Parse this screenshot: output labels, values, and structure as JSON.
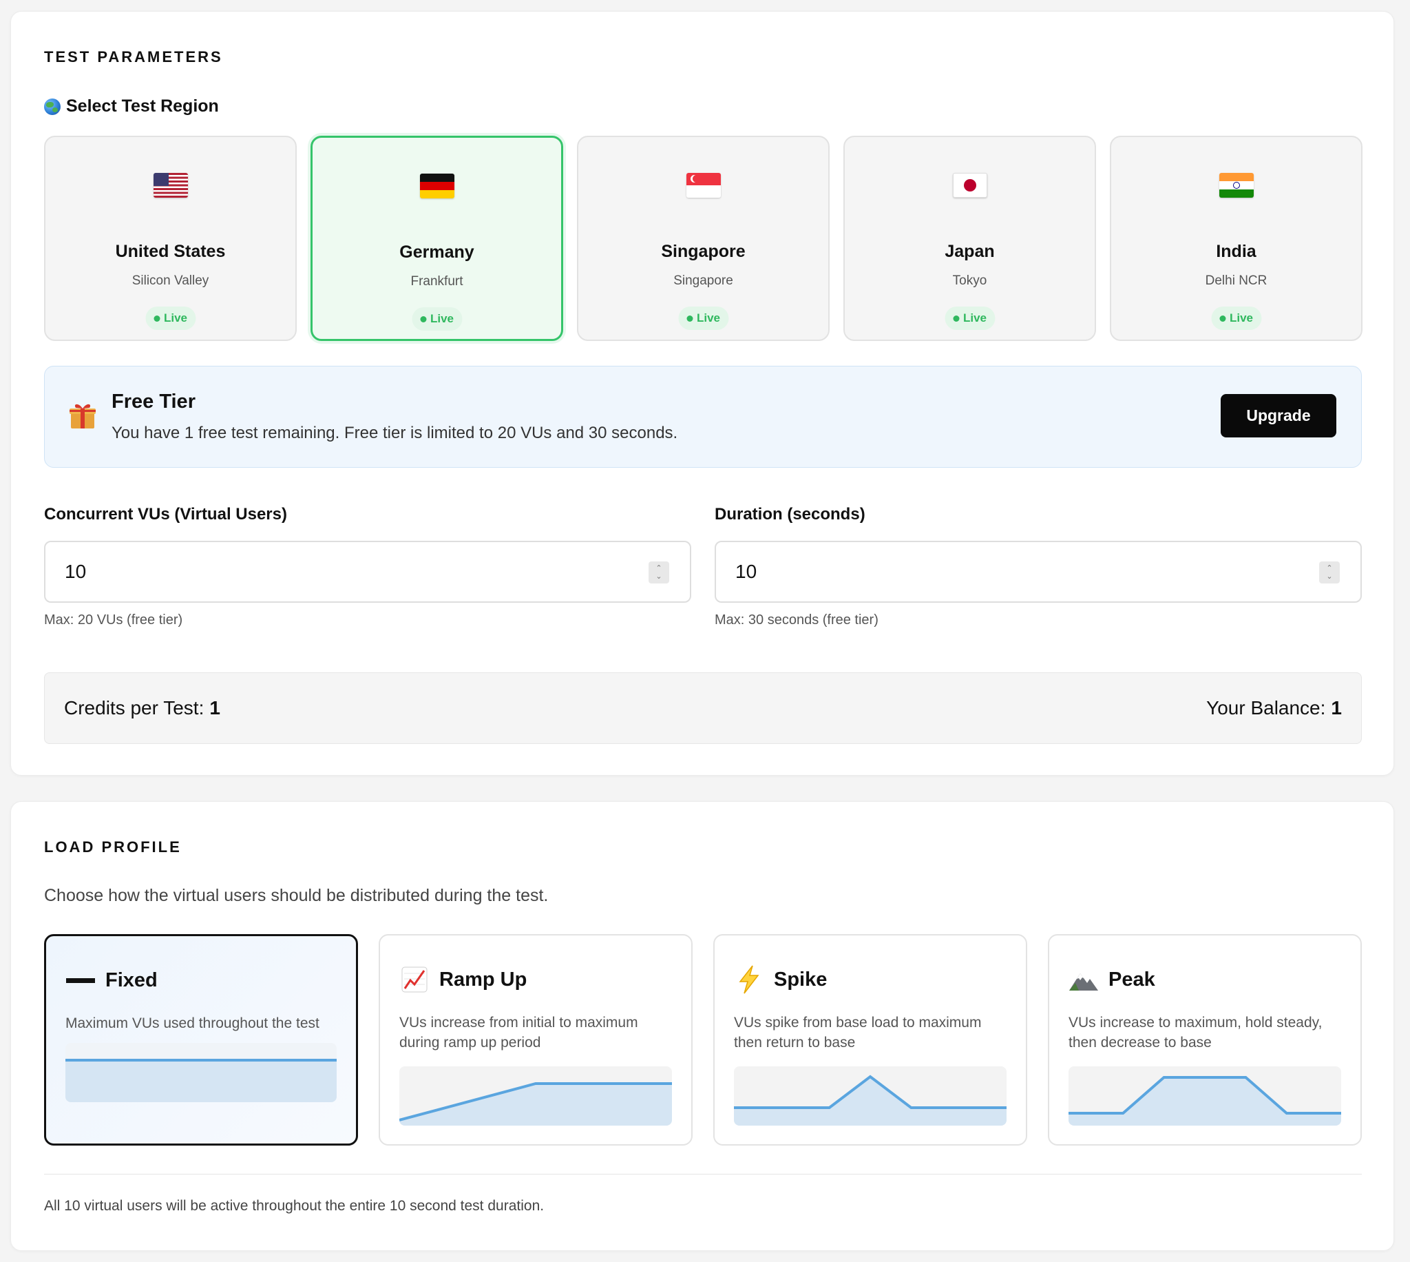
{
  "test_parameters": {
    "section_title": "TEST PARAMETERS",
    "region_heading": "Select Test Region",
    "regions": [
      {
        "name": "United States",
        "city": "Silicon Valley",
        "status": "Live",
        "flag": "us-flag-icon",
        "selected": false
      },
      {
        "name": "Germany",
        "city": "Frankfurt",
        "status": "Live",
        "flag": "de-flag-icon",
        "selected": true
      },
      {
        "name": "Singapore",
        "city": "Singapore",
        "status": "Live",
        "flag": "sg-flag-icon",
        "selected": false
      },
      {
        "name": "Japan",
        "city": "Tokyo",
        "status": "Live",
        "flag": "jp-flag-icon",
        "selected": false
      },
      {
        "name": "India",
        "city": "Delhi NCR",
        "status": "Live",
        "flag": "in-flag-icon",
        "selected": false
      }
    ],
    "free_tier": {
      "icon": "gift-icon",
      "title": "Free Tier",
      "message": "You have 1 free test remaining. Free tier is limited to 20 VUs and 30 seconds.",
      "button_label": "Upgrade"
    },
    "vus_field": {
      "label": "Concurrent VUs (Virtual Users)",
      "value": "10",
      "hint": "Max: 20 VUs (free tier)"
    },
    "duration_field": {
      "label": "Duration (seconds)",
      "value": "10",
      "hint": "Max: 30 seconds (free tier)"
    },
    "credits": {
      "per_test_label": "Credits per Test:",
      "per_test_value": "1",
      "balance_label": "Your Balance:",
      "balance_value": "1"
    }
  },
  "load_profile": {
    "section_title": "LOAD PROFILE",
    "description": "Choose how the virtual users should be distributed during the test.",
    "options": [
      {
        "title": "Fixed",
        "icon": "dash-icon",
        "description": "Maximum VUs used throughout the test",
        "selected": true
      },
      {
        "title": "Ramp Up",
        "icon": "chart-increasing-icon",
        "description": "VUs increase from initial to maximum during ramp up period",
        "selected": false
      },
      {
        "title": "Spike",
        "icon": "lightning-icon",
        "description": "VUs spike from base load to maximum then return to base",
        "selected": false
      },
      {
        "title": "Peak",
        "icon": "mountain-icon",
        "description": "VUs increase to maximum, hold steady, then decrease to base",
        "selected": false
      }
    ],
    "summary": "All 10 virtual users will be active throughout the entire 10 second test duration."
  },
  "colors": {
    "accent_green": "#35c46a",
    "chart_line": "#5aa5df",
    "chart_fill": "#d5e5f3",
    "banner_bg": "#eff6fd",
    "button_dark": "#0a0a0a"
  }
}
